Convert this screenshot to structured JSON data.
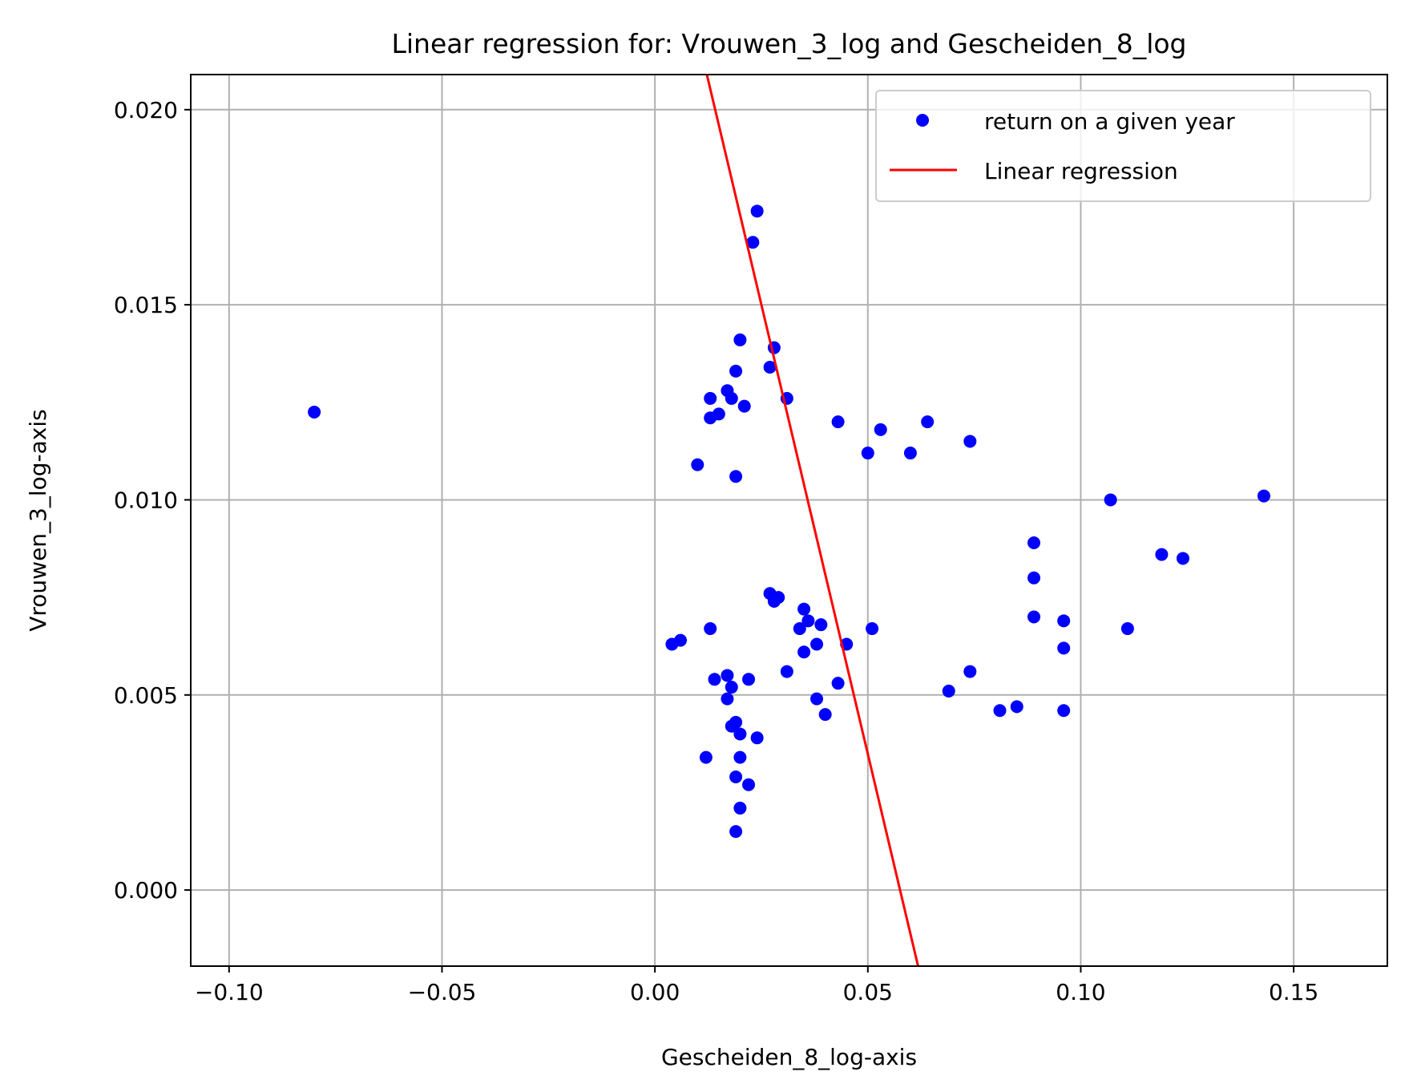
{
  "chart_data": {
    "type": "scatter",
    "title": "Linear regression for: Vrouwen_3_log and Gescheiden_8_log",
    "xlabel": "Gescheiden_8_log-axis",
    "ylabel": "Vrouwen_3_log-axis",
    "xlim": [
      -0.109,
      0.172
    ],
    "ylim": [
      -0.00195,
      0.0209
    ],
    "x_ticks": [
      -0.1,
      -0.05,
      0.0,
      0.05,
      0.1,
      0.15
    ],
    "x_tick_labels": [
      "−0.10",
      "−0.05",
      "0.00",
      "0.05",
      "0.10",
      "0.15"
    ],
    "y_ticks": [
      0.0,
      0.005,
      0.01,
      0.015,
      0.02
    ],
    "y_tick_labels": [
      "0.000",
      "0.005",
      "0.010",
      "0.015",
      "0.020"
    ],
    "grid": true,
    "legend_position": "top-right",
    "series": [
      {
        "name": "return on a given year",
        "kind": "scatter",
        "color": "#0000ff",
        "points": [
          [
            -0.08,
            0.01225
          ],
          [
            0.024,
            0.0174
          ],
          [
            0.023,
            0.0166
          ],
          [
            0.02,
            0.0141
          ],
          [
            0.028,
            0.0139
          ],
          [
            0.019,
            0.0133
          ],
          [
            0.027,
            0.0134
          ],
          [
            0.017,
            0.0128
          ],
          [
            0.018,
            0.0126
          ],
          [
            0.013,
            0.0126
          ],
          [
            0.031,
            0.0126
          ],
          [
            0.021,
            0.0124
          ],
          [
            0.015,
            0.0122
          ],
          [
            0.013,
            0.0121
          ],
          [
            0.043,
            0.012
          ],
          [
            0.064,
            0.012
          ],
          [
            0.053,
            0.0118
          ],
          [
            0.074,
            0.0115
          ],
          [
            0.05,
            0.0112
          ],
          [
            0.06,
            0.0112
          ],
          [
            0.01,
            0.0109
          ],
          [
            0.019,
            0.0106
          ],
          [
            0.107,
            0.01
          ],
          [
            0.143,
            0.0101
          ],
          [
            0.089,
            0.0089
          ],
          [
            0.119,
            0.0086
          ],
          [
            0.124,
            0.0085
          ],
          [
            0.089,
            0.008
          ],
          [
            0.027,
            0.0076
          ],
          [
            0.029,
            0.0075
          ],
          [
            0.028,
            0.0074
          ],
          [
            0.035,
            0.0072
          ],
          [
            0.036,
            0.0069
          ],
          [
            0.039,
            0.0068
          ],
          [
            0.034,
            0.0067
          ],
          [
            0.013,
            0.0067
          ],
          [
            0.051,
            0.0067
          ],
          [
            0.089,
            0.007
          ],
          [
            0.096,
            0.0069
          ],
          [
            0.111,
            0.0067
          ],
          [
            0.004,
            0.0063
          ],
          [
            0.006,
            0.0064
          ],
          [
            0.038,
            0.0063
          ],
          [
            0.045,
            0.0063
          ],
          [
            0.035,
            0.0061
          ],
          [
            0.096,
            0.0062
          ],
          [
            0.031,
            0.0056
          ],
          [
            0.074,
            0.0056
          ],
          [
            0.017,
            0.0055
          ],
          [
            0.014,
            0.0054
          ],
          [
            0.022,
            0.0054
          ],
          [
            0.043,
            0.0053
          ],
          [
            0.018,
            0.0052
          ],
          [
            0.069,
            0.0051
          ],
          [
            0.038,
            0.0049
          ],
          [
            0.017,
            0.0049
          ],
          [
            0.085,
            0.0047
          ],
          [
            0.081,
            0.0046
          ],
          [
            0.096,
            0.0046
          ],
          [
            0.04,
            0.0045
          ],
          [
            0.019,
            0.0043
          ],
          [
            0.018,
            0.0042
          ],
          [
            0.02,
            0.004
          ],
          [
            0.024,
            0.0039
          ],
          [
            0.012,
            0.0034
          ],
          [
            0.02,
            0.0034
          ],
          [
            0.019,
            0.0029
          ],
          [
            0.022,
            0.0027
          ],
          [
            0.02,
            0.0021
          ],
          [
            0.019,
            0.0015
          ]
        ]
      },
      {
        "name": "Linear regression",
        "kind": "line",
        "color": "#ff0000",
        "points": [
          [
            0.0122,
            0.0209
          ],
          [
            0.0618,
            -0.00195
          ]
        ]
      }
    ]
  }
}
